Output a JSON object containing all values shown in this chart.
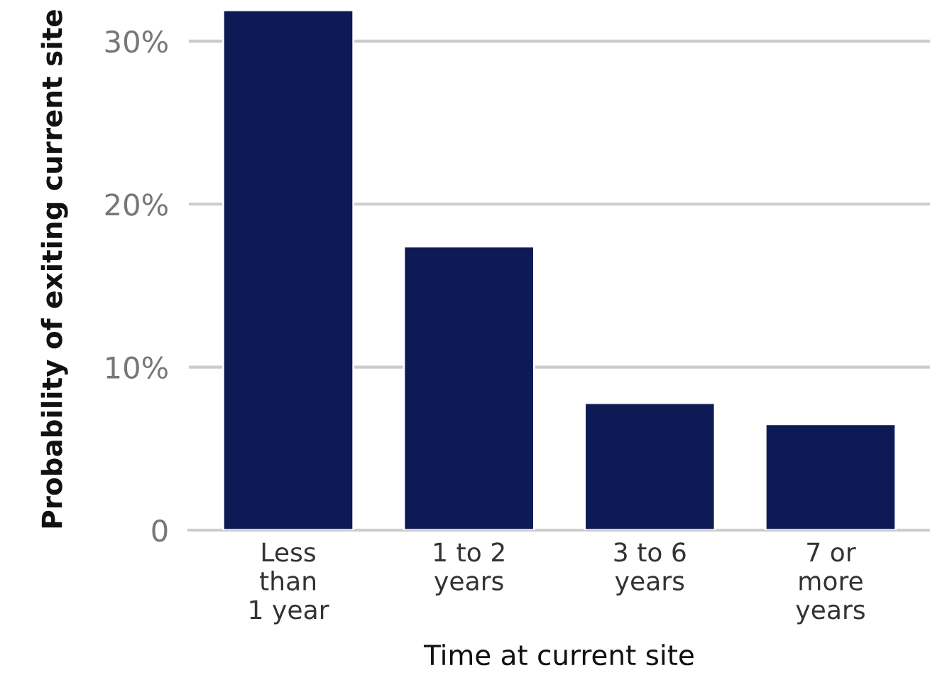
{
  "chart_data": {
    "type": "bar",
    "xlabel": "Time at current site",
    "ylabel": "Probability of exiting current site",
    "categories": [
      "Less\nthan\n1 year",
      "1 to 2\nyears",
      "3 to 6\nyears",
      "7 or\nmore\nyears"
    ],
    "values": [
      31.9,
      17.4,
      7.8,
      6.5
    ],
    "color": "#0e1a56",
    "ylim": [
      0,
      32
    ],
    "yticks": [
      {
        "value": 0,
        "label": "0"
      },
      {
        "value": 10,
        "label": "10%"
      },
      {
        "value": 20,
        "label": "20%"
      },
      {
        "value": 30,
        "label": "30%"
      }
    ],
    "grid": "y"
  }
}
